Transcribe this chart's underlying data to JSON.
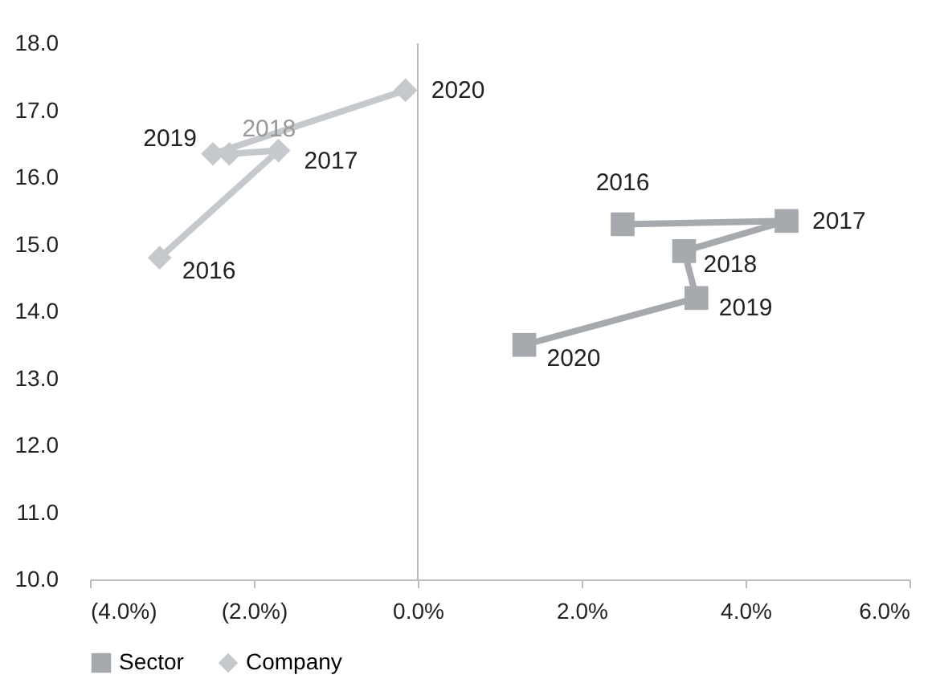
{
  "chart_data": {
    "type": "line",
    "xlim": [
      -4,
      6
    ],
    "xticks": [
      {
        "value": -4,
        "label": "(4.0%)"
      },
      {
        "value": -2,
        "label": "(2.0%)"
      },
      {
        "value": 0,
        "label": "0.0%"
      },
      {
        "value": 2,
        "label": "2.0%"
      },
      {
        "value": 4,
        "label": "4.0%"
      },
      {
        "value": 6,
        "label": "6.0%"
      }
    ],
    "ylim": [
      10,
      18
    ],
    "yticks": [
      {
        "value": 10,
        "label": "10.0"
      },
      {
        "value": 11,
        "label": "11.0"
      },
      {
        "value": 12,
        "label": "12.0"
      },
      {
        "value": 13,
        "label": "13.0"
      },
      {
        "value": 14,
        "label": "14.0"
      },
      {
        "value": 15,
        "label": "15.0"
      },
      {
        "value": 16,
        "label": "16.0"
      },
      {
        "value": 17,
        "label": "17.0"
      },
      {
        "value": 18,
        "label": "18.0"
      }
    ],
    "series": [
      {
        "name": "Sector",
        "color": "#a6a9ae",
        "marker": "square",
        "x": [
          2.5,
          4.5,
          3.25,
          3.4,
          1.3
        ],
        "values": [
          15.3,
          15.35,
          14.9,
          14.2,
          13.5
        ]
      },
      {
        "name": "Company",
        "color": "#c5c8cc",
        "marker": "diamond",
        "x": [
          -3.15,
          -1.7,
          -2.3,
          -2.5,
          -0.15
        ],
        "values": [
          14.8,
          16.4,
          16.35,
          16.35,
          17.3
        ]
      }
    ],
    "annotations": [
      {
        "text": "2016",
        "x": 2.5,
        "y": 15.3
      },
      {
        "text": "2017",
        "x": 4.5,
        "y": 15.35
      },
      {
        "text": "2018",
        "x": 3.25,
        "y": 14.9
      },
      {
        "text": "2019",
        "x": 3.4,
        "y": 14.2
      },
      {
        "text": "2020",
        "x": 1.3,
        "y": 13.5
      },
      {
        "text": "2016",
        "x": -3.15,
        "y": 14.8
      },
      {
        "text": "2017",
        "x": -1.7,
        "y": 16.4
      },
      {
        "text": "2018",
        "x": -2.3,
        "y": 16.35
      },
      {
        "text": "2019",
        "x": -2.5,
        "y": 16.35
      },
      {
        "text": "2020",
        "x": -0.15,
        "y": 17.3
      }
    ],
    "ref_lines": [
      {
        "axis": "x",
        "value": 0,
        "color": "#bbbbbb"
      }
    ],
    "grid": false,
    "line_style": "solid",
    "legend": "bottom"
  }
}
